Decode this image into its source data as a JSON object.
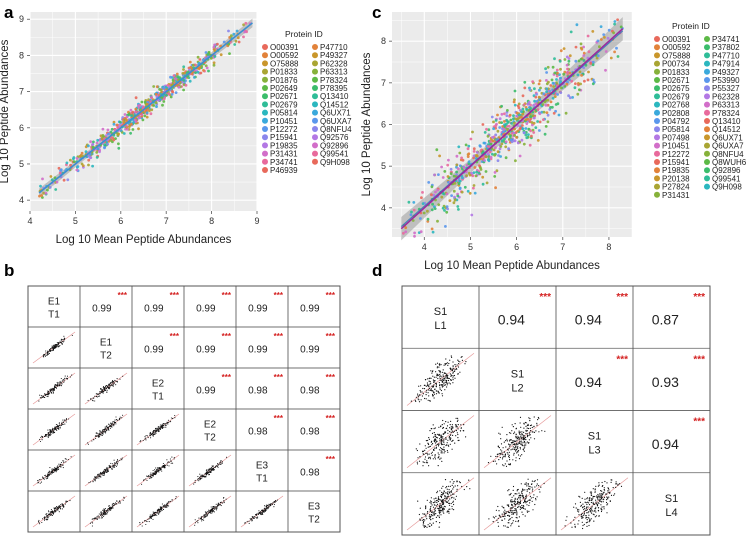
{
  "panel_labels": {
    "a": "a",
    "b": "b",
    "c": "c",
    "d": "d"
  },
  "colors": {
    "line_a": "#3b8fd0",
    "band": "#9a9a9a",
    "line_c1": "#9b2a9e",
    "line_c2": "#2a73b8",
    "star": "#d42020",
    "cell_border": "#555555",
    "points": [
      "#e8695b",
      "#e2823a",
      "#c9962b",
      "#a9a533",
      "#86b13a",
      "#5cb946",
      "#3bbd6b",
      "#2fbd98",
      "#2bb7bf",
      "#3aa9dc",
      "#5a97ec",
      "#8b86ec",
      "#b378e4",
      "#d26ec9",
      "#e86a9c"
    ]
  },
  "chart_data": [
    {
      "id": "a",
      "type": "scatter",
      "title": "",
      "xlabel": "Log 10 Mean Peptide Abundances",
      "ylabel": "Log 10 Peptide Abundances",
      "xlim": [
        4,
        9
      ],
      "ylim": [
        3.7,
        9.2
      ],
      "xticks": [
        4,
        5,
        6,
        7,
        8,
        9
      ],
      "yticks": [
        4,
        5,
        6,
        7,
        8,
        9
      ],
      "grid": true,
      "x_range_data": [
        4.2,
        8.9
      ],
      "fit": {
        "slope": 1.0,
        "intercept": 0.0,
        "x": [
          4.2,
          8.9
        ]
      },
      "legend_title": "Protein ID",
      "legend": [
        [
          "O00391",
          "O00592",
          "O75888",
          "P01833",
          "P01876",
          "P02649",
          "P02671",
          "P02679",
          "P05814",
          "P10451",
          "P12272",
          "P15941",
          "P19835",
          "P31431",
          "P34741",
          "P46939"
        ],
        [
          "P47710",
          "P49327",
          "P62328",
          "P63313",
          "P78324",
          "P78395",
          "Q13410",
          "Q14512",
          "Q6UX71",
          "Q6UXA7",
          "Q8NFU4",
          "Q92576",
          "Q92896",
          "Q99541",
          "Q9H098"
        ]
      ]
    },
    {
      "id": "c",
      "type": "scatter",
      "title": "",
      "xlabel": "Log 10 Mean Peptide Abundances",
      "ylabel": "Log 10 Peptide Abundances",
      "xlim": [
        3.3,
        8.5
      ],
      "ylim": [
        3.3,
        8.7
      ],
      "xticks": [
        4,
        5,
        6,
        7,
        8
      ],
      "yticks": [
        4,
        5,
        6,
        7,
        8
      ],
      "grid": true,
      "x_range_data": [
        3.5,
        8.3
      ],
      "fit": {
        "slope": 1.0,
        "intercept": 0.0,
        "x": [
          3.5,
          8.3
        ]
      },
      "legend_title": "Protein ID",
      "legend": [
        [
          "O00391",
          "O00592",
          "O75888",
          "P00734",
          "P01833",
          "P02671",
          "P02675",
          "P02679",
          "P02768",
          "P02808",
          "P04792",
          "P05814",
          "P07498",
          "P10451",
          "P12272",
          "P15941",
          "P19835",
          "P20138",
          "P27824",
          "P31431"
        ],
        [
          "P34741",
          "P37802",
          "P47710",
          "P47914",
          "P49327",
          "P53990",
          "P55327",
          "P62328",
          "P63313",
          "P78324",
          "Q13410",
          "Q14512",
          "Q6UX71",
          "Q6UXA7",
          "Q8NFU4",
          "Q8WUH6",
          "Q92896",
          "Q99541",
          "Q9H098"
        ]
      ]
    },
    {
      "id": "b",
      "type": "table",
      "title": "",
      "samples": [
        [
          "E1",
          "T1"
        ],
        [
          "E1",
          "T2"
        ],
        [
          "E2",
          "T1"
        ],
        [
          "E2",
          "T2"
        ],
        [
          "E3",
          "T1"
        ],
        [
          "E3",
          "T2"
        ]
      ],
      "correlations": [
        [
          null,
          "0.99",
          "0.99",
          "0.99",
          "0.99",
          "0.99"
        ],
        [
          null,
          null,
          "0.99",
          "0.99",
          "0.99",
          "0.99"
        ],
        [
          null,
          null,
          null,
          "0.99",
          "0.98",
          "0.98"
        ],
        [
          null,
          null,
          null,
          null,
          "0.98",
          "0.98"
        ],
        [
          null,
          null,
          null,
          null,
          null,
          "0.98"
        ],
        [
          null,
          null,
          null,
          null,
          null,
          null
        ]
      ],
      "significance": "***"
    },
    {
      "id": "d",
      "type": "table",
      "title": "",
      "samples": [
        [
          "S1",
          "L1"
        ],
        [
          "S1",
          "L2"
        ],
        [
          "S1",
          "L3"
        ],
        [
          "S1",
          "L4"
        ]
      ],
      "correlations": [
        [
          null,
          "0.94",
          "0.94",
          "0.87"
        ],
        [
          null,
          null,
          "0.94",
          "0.93"
        ],
        [
          null,
          null,
          null,
          "0.94"
        ],
        [
          null,
          null,
          null,
          null
        ]
      ],
      "significance": "***"
    }
  ]
}
